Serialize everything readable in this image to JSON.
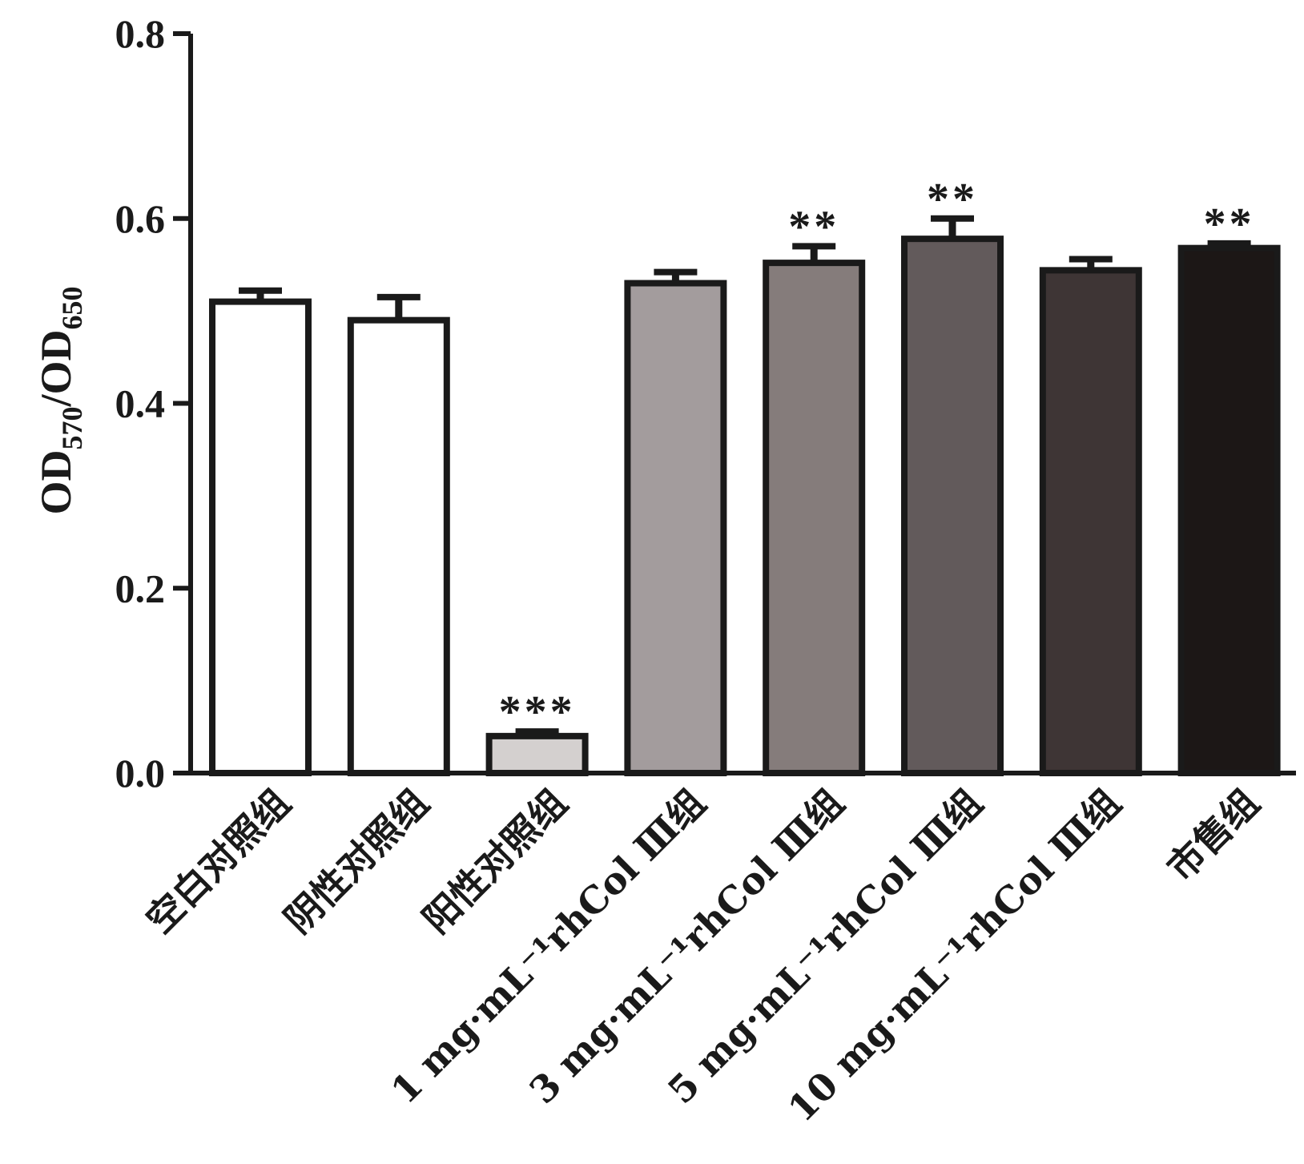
{
  "chart_data": {
    "type": "bar",
    "title": "",
    "xlabel": "",
    "ylabel": {
      "main": "OD",
      "sub1": "570",
      "sep": "/OD",
      "sub2": "650"
    },
    "ylim": [
      0,
      0.8
    ],
    "yticks": [
      "0.0",
      "0.2",
      "0.4",
      "0.6",
      "0.8"
    ],
    "categories": [
      {
        "label": "空白对照组",
        "value": 0.51,
        "error": 0.012,
        "sig": "",
        "color": "#ffffff"
      },
      {
        "label": "阴性对照组",
        "value": 0.49,
        "error": 0.025,
        "sig": "",
        "color": "#ffffff"
      },
      {
        "label": "阳性对照组",
        "value": 0.04,
        "error": 0.005,
        "sig": "***",
        "color": "#d4d0cf"
      },
      {
        "label": "1 mg·mL⁻¹rhCol Ⅲ组",
        "value": 0.53,
        "error": 0.012,
        "sig": "",
        "color": "#a39c9d"
      },
      {
        "label": "3 mg·mL⁻¹rhCol Ⅲ组",
        "value": 0.552,
        "error": 0.018,
        "sig": "**",
        "color": "#857c7b"
      },
      {
        "label": "5 mg·mL⁻¹rhCol Ⅲ组",
        "value": 0.578,
        "error": 0.022,
        "sig": "**",
        "color": "#625a5b"
      },
      {
        "label": "10 mg·mL⁻¹rhCol Ⅲ组",
        "value": 0.544,
        "error": 0.012,
        "sig": "",
        "color": "#3e3535"
      },
      {
        "label": "市售组",
        "value": 0.568,
        "error": 0.005,
        "sig": "**",
        "color": "#1c1716"
      }
    ]
  }
}
